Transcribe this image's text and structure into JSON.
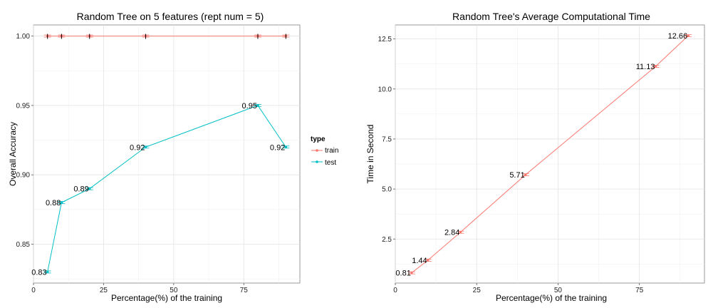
{
  "chart_data": [
    {
      "type": "line",
      "title": "Random Tree on 5 features (rept num = 5)",
      "xlabel": "Percentage(%) of the training",
      "ylabel": "Overall Accuracy",
      "xlim": [
        0,
        95
      ],
      "ylim": [
        0.822,
        1.008
      ],
      "xticks": [
        0,
        25,
        50,
        75
      ],
      "yticks": [
        0.85,
        0.9,
        0.95,
        1.0
      ],
      "ytick_labels": [
        "0.85",
        "0.90",
        "0.95",
        "1.00"
      ],
      "grid": true,
      "legend": {
        "title": "type",
        "placement": "right",
        "entries": [
          {
            "name": "train",
            "color": "#F8766D"
          },
          {
            "name": "test",
            "color": "#00BFC4"
          }
        ]
      },
      "series": [
        {
          "name": "train",
          "color": "#F8766D",
          "x": [
            5,
            10,
            20,
            40,
            80,
            90
          ],
          "y": [
            1.0,
            1.0,
            1.0,
            1.0,
            1.0,
            1.0
          ],
          "labels": []
        },
        {
          "name": "test",
          "color": "#00BFC4",
          "x": [
            5,
            10,
            20,
            40,
            80,
            90
          ],
          "y": [
            0.83,
            0.88,
            0.89,
            0.92,
            0.95,
            0.92
          ],
          "labels": [
            "0.83",
            "0.88",
            "0.89",
            "0.92",
            "0.95",
            "0.92"
          ]
        }
      ]
    },
    {
      "type": "line",
      "title": "Random Tree's Average Computational Time",
      "xlabel": "Percentage(%) of the training",
      "ylabel": "Time in Second",
      "xlim": [
        0,
        95
      ],
      "ylim": [
        0.3,
        13.2
      ],
      "xticks": [
        0,
        25,
        50,
        75
      ],
      "yticks": [
        2.5,
        5.0,
        7.5,
        10.0,
        12.5
      ],
      "ytick_labels": [
        "2.5",
        "5.0",
        "7.5",
        "10.0",
        "12.5"
      ],
      "grid": true,
      "series": [
        {
          "name": "time",
          "color": "#F8766D",
          "x": [
            5,
            10,
            20,
            40,
            80,
            90
          ],
          "y": [
            0.81,
            1.44,
            2.84,
            5.71,
            11.13,
            12.66
          ],
          "labels": [
            "0.81",
            "1.44",
            "2.84",
            "5.71",
            "11.13",
            "12.66"
          ]
        }
      ]
    }
  ]
}
